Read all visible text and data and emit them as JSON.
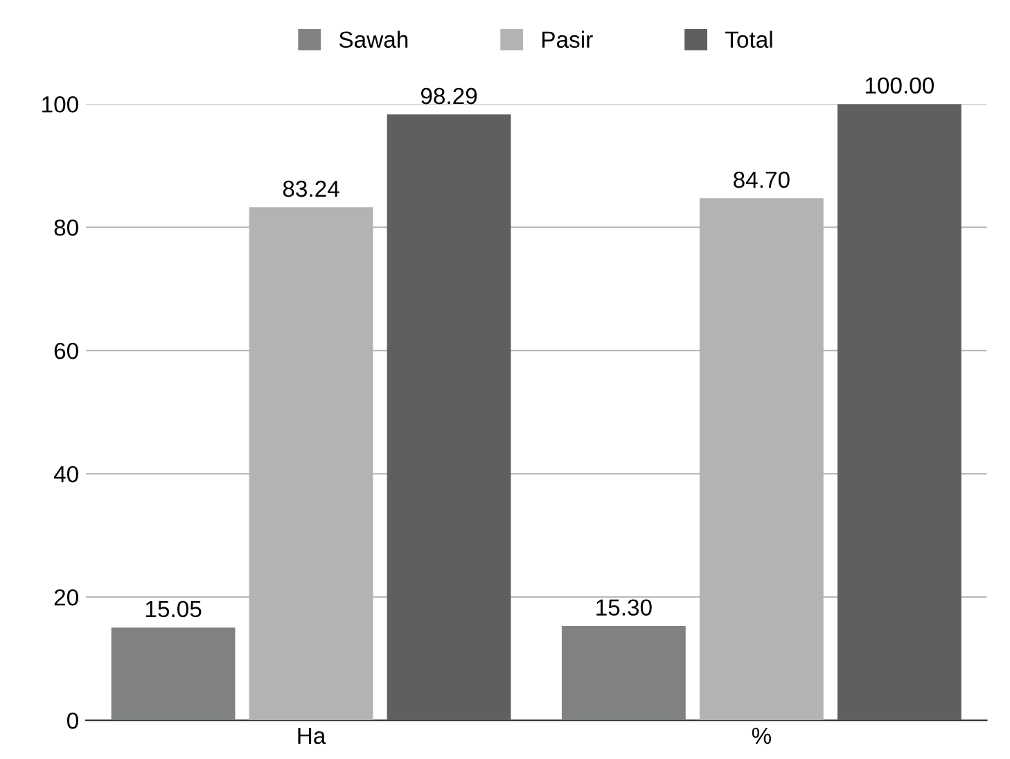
{
  "chart_data": {
    "type": "bar",
    "categories": [
      "Ha",
      "%"
    ],
    "series": [
      {
        "name": "Sawah",
        "color": "#7f8280",
        "values": [
          15.05,
          15.3
        ],
        "value_labels": [
          "15.05",
          "15.30"
        ]
      },
      {
        "name": "Pasir",
        "color": "#b3b3b3",
        "values": [
          83.24,
          84.7
        ],
        "value_labels": [
          "83.24",
          "84.70"
        ]
      },
      {
        "name": "Total",
        "color": "#5e605f",
        "values": [
          98.29,
          100
        ],
        "value_labels": [
          "98.29",
          "100.00"
        ]
      }
    ],
    "ylim": [
      0,
      100
    ],
    "yticks": [
      0,
      20,
      40,
      60,
      80,
      100
    ],
    "grid": "y",
    "legend": "top"
  }
}
